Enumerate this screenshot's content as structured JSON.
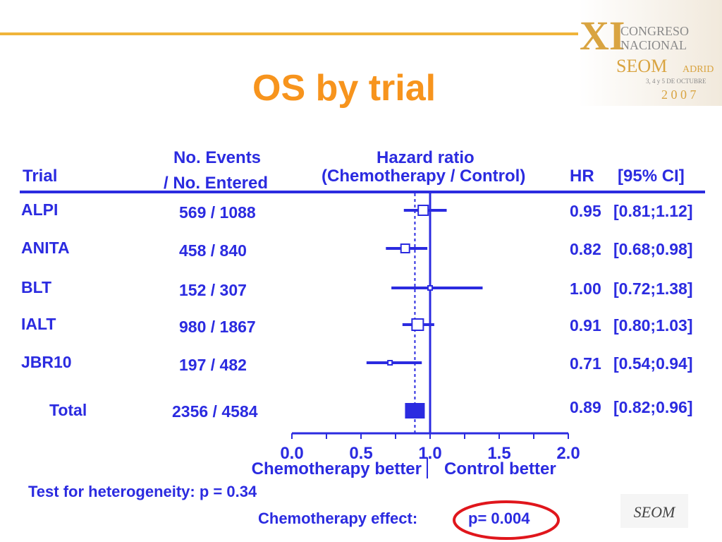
{
  "title": "OS by trial",
  "congress_logo": {
    "numeral": "XI",
    "line1": "CONGRESO",
    "line2": "NACIONAL",
    "line3": "SEOM",
    "city": "ADRID",
    "dates": "3, 4 y 5 DE OCTUBRE",
    "year": "2 0 0 7"
  },
  "headers": {
    "trial": "Trial",
    "events_line1": "No. Events",
    "events_line2": "/ No. Entered",
    "hr_line1": "Hazard ratio",
    "hr_line2": "(Chemotherapy / Control)",
    "hr": "HR",
    "ci": "[95% CI]"
  },
  "chart_data": {
    "type": "forest",
    "x_ticks": [
      "0.0",
      "0.5",
      "1.0",
      "1.5",
      "2.0"
    ],
    "xlim": [
      0,
      2
    ],
    "reference_line": 1.0,
    "pooled_line": 0.89,
    "left_label": "Chemotherapy better",
    "right_label": "Control better",
    "rows": [
      {
        "trial": "ALPI",
        "events": "569 / 1088",
        "hr": 0.95,
        "lo": 0.81,
        "hi": 1.12,
        "hr_text": "0.95",
        "ci_text": "[0.81;1.12]"
      },
      {
        "trial": "ANITA",
        "events": "458 / 840",
        "hr": 0.82,
        "lo": 0.68,
        "hi": 0.98,
        "hr_text": "0.82",
        "ci_text": "[0.68;0.98]"
      },
      {
        "trial": "BLT",
        "events": "152 / 307",
        "hr": 1.0,
        "lo": 0.72,
        "hi": 1.38,
        "hr_text": "1.00",
        "ci_text": "[0.72;1.38]"
      },
      {
        "trial": "IALT",
        "events": "980 / 1867",
        "hr": 0.91,
        "lo": 0.8,
        "hi": 1.03,
        "hr_text": "0.91",
        "ci_text": "[0.80;1.03]"
      },
      {
        "trial": "JBR10",
        "events": "197 / 482",
        "hr": 0.71,
        "lo": 0.54,
        "hi": 0.94,
        "hr_text": "0.71",
        "ci_text": "[0.54;0.94]"
      }
    ],
    "total": {
      "trial": "Total",
      "events": "2356 / 4584",
      "hr": 0.89,
      "lo": 0.82,
      "hi": 0.96,
      "hr_text": "0.89",
      "ci_text": "[0.82;0.96]"
    }
  },
  "footer": {
    "heterogeneity": "Test for heterogeneity: p = 0.34",
    "effect_label": "Chemotherapy effect:",
    "effect_p": "p= 0.004"
  },
  "colors": {
    "blue": "#2b2be0",
    "orange": "#f7941d",
    "gold": "#f0b43a",
    "red": "#e0161c"
  },
  "seom_logo": "SEOM"
}
